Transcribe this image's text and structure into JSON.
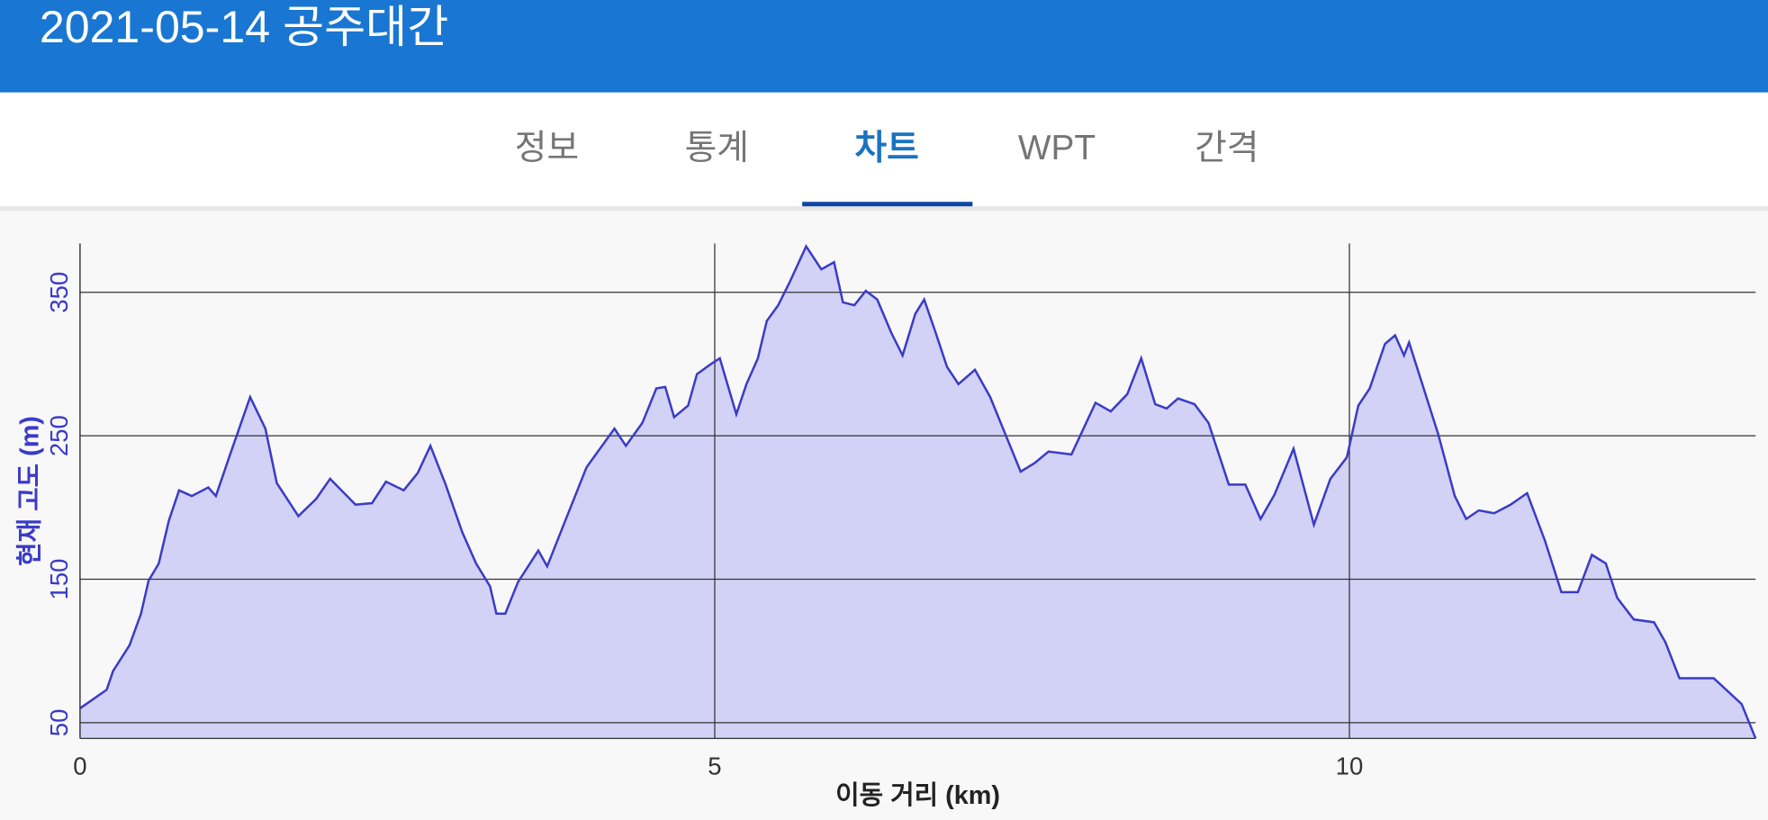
{
  "header": {
    "title": "2021-05-14 공주대간"
  },
  "tabs": [
    {
      "label": "정보"
    },
    {
      "label": "통계"
    },
    {
      "label": "차트",
      "active": true
    },
    {
      "label": "WPT"
    },
    {
      "label": "간격"
    }
  ],
  "chart_data": {
    "type": "area",
    "xlabel": "이동 거리 (km)",
    "ylabel": "현재 고도 (m)",
    "color": "#3b3bc8",
    "fill": "#d2d2f6",
    "grid": true,
    "xlim": [
      0,
      13.2
    ],
    "xticks": [
      0,
      5,
      10
    ],
    "ylim": [
      39,
      384
    ],
    "yticks": [
      50,
      150,
      250,
      350
    ],
    "x": [
      0,
      0.21,
      0.26,
      0.39,
      0.48,
      0.54,
      0.62,
      0.7,
      0.78,
      0.88,
      1.01,
      1.07,
      1.19,
      1.34,
      1.46,
      1.55,
      1.72,
      1.86,
      1.97,
      2.17,
      2.3,
      2.41,
      2.55,
      2.66,
      2.76,
      2.88,
      3.01,
      3.12,
      3.23,
      3.28,
      3.35,
      3.45,
      3.61,
      3.68,
      3.81,
      3.99,
      4.21,
      4.3,
      4.43,
      4.54,
      4.61,
      4.68,
      4.79,
      4.86,
      4.97,
      5.04,
      5.1,
      5.17,
      5.25,
      5.34,
      5.41,
      5.5,
      5.59,
      5.72,
      5.84,
      5.94,
      6.01,
      6.1,
      6.19,
      6.28,
      6.39,
      6.48,
      6.58,
      6.65,
      6.74,
      6.83,
      6.92,
      7.05,
      7.17,
      7.29,
      7.41,
      7.52,
      7.63,
      7.81,
      8.0,
      8.12,
      8.25,
      8.36,
      8.47,
      8.56,
      8.65,
      8.78,
      8.89,
      9.05,
      9.18,
      9.3,
      9.41,
      9.56,
      9.72,
      9.85,
      9.98,
      10.07,
      10.16,
      10.28,
      10.36,
      10.43,
      10.47,
      10.56,
      10.7,
      10.83,
      10.92,
      11.02,
      11.14,
      11.27,
      11.4,
      11.54,
      11.67,
      11.8,
      11.91,
      12.02,
      12.11,
      12.24,
      12.4,
      12.49,
      12.6,
      12.87,
      13.09,
      13.2
    ],
    "values": [
      60,
      73,
      86,
      104,
      126,
      149,
      161,
      191,
      212,
      208,
      214,
      208,
      239,
      277,
      255,
      217,
      194,
      206,
      220,
      202,
      203,
      218,
      212,
      224,
      243,
      216,
      183,
      161,
      145,
      126,
      126,
      148,
      170,
      159,
      188,
      228,
      255,
      243,
      259,
      283,
      284,
      263,
      271,
      293,
      300,
      304,
      286,
      265,
      286,
      304,
      330,
      341,
      357,
      382,
      366,
      371,
      343,
      341,
      351,
      345,
      322,
      306,
      335,
      345,
      322,
      298,
      286,
      296,
      277,
      251,
      225,
      231,
      239,
      237,
      273,
      267,
      279,
      304,
      272,
      269,
      276,
      272,
      259,
      216,
      216,
      192,
      209,
      241,
      188,
      220,
      235,
      271,
      283,
      314,
      320,
      306,
      315,
      290,
      251,
      208,
      192,
      198,
      196,
      202,
      210,
      177,
      141,
      141,
      167,
      161,
      137,
      122,
      120,
      106,
      81,
      81,
      63,
      39
    ]
  }
}
